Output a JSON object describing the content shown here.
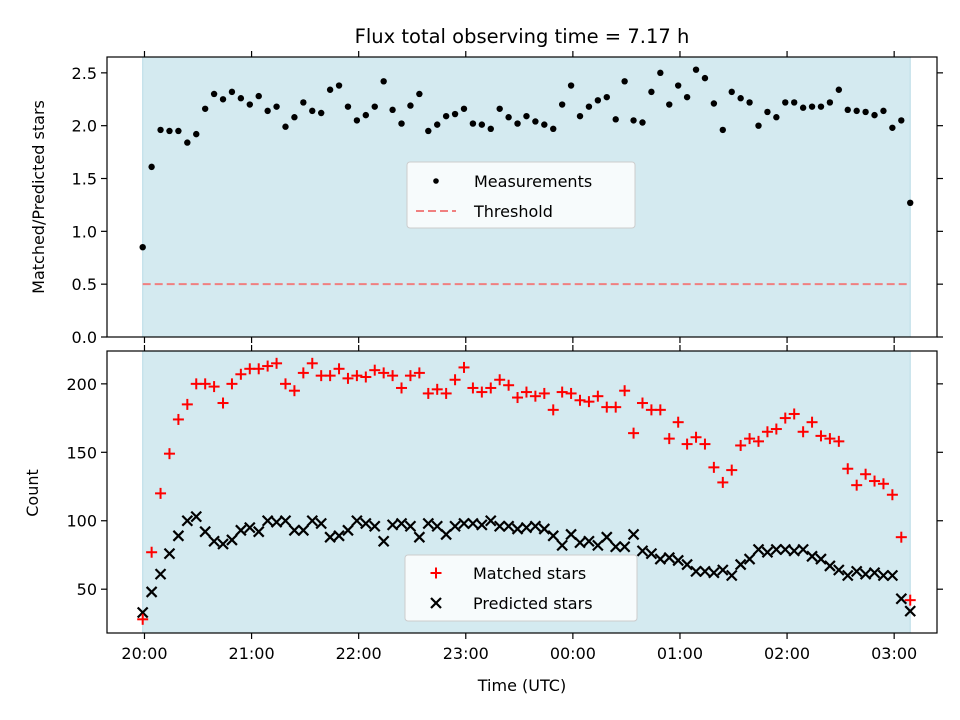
{
  "chart_data": [
    {
      "type": "scatter",
      "title": "Flux total observing time = 7.17 h",
      "ylabel": "Matched/Predicted stars",
      "xlabel": "",
      "xlim": [
        "19:39",
        "03:24"
      ],
      "ylim": [
        0,
        2.65
      ],
      "x_ticks": [
        "20:00",
        "21:00",
        "22:00",
        "23:00",
        "00:00",
        "01:00",
        "02:00",
        "03:00"
      ],
      "y_ticks": [
        "0.0",
        "0.5",
        "1.0",
        "1.5",
        "2.0",
        "2.5"
      ],
      "y_tick_values": [
        0,
        0.5,
        1.0,
        1.5,
        2.0,
        2.5
      ],
      "observing_window": [
        "19:59",
        "03:09"
      ],
      "observing_window_color": "#d4eaf0",
      "legend_position": "center",
      "grid": false,
      "series": [
        {
          "name": "Measurements",
          "marker": "dot",
          "color": "#000000",
          "x": [
            "19:59",
            "20:04",
            "20:09",
            "20:14",
            "20:19",
            "20:24",
            "20:29",
            "20:34",
            "20:39",
            "20:44",
            "20:49",
            "20:54",
            "20:59",
            "21:04",
            "21:09",
            "21:14",
            "21:19",
            "21:24",
            "21:29",
            "21:34",
            "21:39",
            "21:44",
            "21:49",
            "21:54",
            "21:59",
            "22:04",
            "22:09",
            "22:14",
            "22:19",
            "22:24",
            "22:29",
            "22:34",
            "22:39",
            "22:44",
            "22:49",
            "22:54",
            "22:59",
            "23:04",
            "23:09",
            "23:14",
            "23:19",
            "23:24",
            "23:29",
            "23:34",
            "23:39",
            "23:44",
            "23:49",
            "23:54",
            "23:59",
            "00:04",
            "00:09",
            "00:14",
            "00:19",
            "00:24",
            "00:29",
            "00:34",
            "00:39",
            "00:44",
            "00:49",
            "00:54",
            "00:59",
            "01:04",
            "01:09",
            "01:14",
            "01:19",
            "01:24",
            "01:29",
            "01:34",
            "01:39",
            "01:44",
            "01:49",
            "01:54",
            "01:59",
            "02:04",
            "02:09",
            "02:14",
            "02:19",
            "02:24",
            "02:29",
            "02:34",
            "02:39",
            "02:44",
            "02:49",
            "02:54",
            "02:59",
            "03:04",
            "03:09"
          ],
          "y": [
            0.85,
            1.61,
            1.96,
            1.95,
            1.95,
            1.84,
            1.92,
            2.16,
            2.3,
            2.25,
            2.32,
            2.26,
            2.2,
            2.28,
            2.14,
            2.18,
            1.99,
            2.08,
            2.22,
            2.14,
            2.12,
            2.34,
            2.38,
            2.18,
            2.05,
            2.1,
            2.18,
            2.42,
            2.15,
            2.02,
            2.19,
            2.3,
            1.95,
            2.01,
            2.09,
            2.11,
            2.16,
            2.02,
            2.01,
            1.97,
            2.16,
            2.08,
            2.02,
            2.09,
            2.04,
            2.01,
            1.97,
            2.2,
            2.38,
            2.09,
            2.18,
            2.24,
            2.27,
            2.06,
            2.42,
            2.05,
            2.03,
            2.32,
            2.5,
            2.2,
            2.38,
            2.27,
            2.53,
            2.45,
            2.21,
            1.96,
            2.32,
            2.26,
            2.22,
            2.0,
            2.13,
            2.08,
            2.22,
            2.22,
            2.17,
            2.18,
            2.18,
            2.22,
            2.34,
            2.15,
            2.14,
            2.13,
            2.1,
            2.14,
            1.98,
            2.05,
            1.27
          ]
        },
        {
          "name": "Threshold",
          "marker": "dashed-line",
          "color": "#f08080",
          "y": 0.5
        }
      ]
    },
    {
      "type": "scatter",
      "title": "",
      "ylabel": "Count",
      "xlabel": "Time (UTC)",
      "xlim": [
        "19:39",
        "03:24"
      ],
      "ylim": [
        18,
        224
      ],
      "x_ticks": [
        "20:00",
        "21:00",
        "22:00",
        "23:00",
        "00:00",
        "01:00",
        "02:00",
        "03:00"
      ],
      "y_ticks": [
        "50",
        "100",
        "150",
        "200"
      ],
      "y_tick_values": [
        50,
        100,
        150,
        200
      ],
      "observing_window": [
        "19:59",
        "03:09"
      ],
      "observing_window_color": "#d4eaf0",
      "legend_position": "lower center",
      "grid": false,
      "series": [
        {
          "name": "Matched stars",
          "marker": "plus",
          "color": "#ff0000",
          "x": [
            "19:59",
            "20:04",
            "20:09",
            "20:14",
            "20:19",
            "20:24",
            "20:29",
            "20:34",
            "20:39",
            "20:44",
            "20:49",
            "20:54",
            "20:59",
            "21:04",
            "21:09",
            "21:14",
            "21:19",
            "21:24",
            "21:29",
            "21:34",
            "21:39",
            "21:44",
            "21:49",
            "21:54",
            "21:59",
            "22:04",
            "22:09",
            "22:14",
            "22:19",
            "22:24",
            "22:29",
            "22:34",
            "22:39",
            "22:44",
            "22:49",
            "22:54",
            "22:59",
            "23:04",
            "23:09",
            "23:14",
            "23:19",
            "23:24",
            "23:29",
            "23:34",
            "23:39",
            "23:44",
            "23:49",
            "23:54",
            "23:59",
            "00:04",
            "00:09",
            "00:14",
            "00:19",
            "00:24",
            "00:29",
            "00:34",
            "00:39",
            "00:44",
            "00:49",
            "00:54",
            "00:59",
            "01:04",
            "01:09",
            "01:14",
            "01:19",
            "01:24",
            "01:29",
            "01:34",
            "01:39",
            "01:44",
            "01:49",
            "01:54",
            "01:59",
            "02:04",
            "02:09",
            "02:14",
            "02:19",
            "02:24",
            "02:29",
            "02:34",
            "02:39",
            "02:44",
            "02:49",
            "02:54",
            "02:59",
            "03:04",
            "03:09"
          ],
          "y": [
            28,
            77,
            120,
            149,
            174,
            185,
            200,
            200,
            198,
            186,
            200,
            207,
            211,
            211,
            213,
            215,
            200,
            195,
            208,
            215,
            206,
            206,
            211,
            204,
            206,
            205,
            210,
            208,
            206,
            197,
            206,
            208,
            193,
            196,
            193,
            203,
            212,
            197,
            194,
            197,
            203,
            199,
            190,
            194,
            191,
            193,
            181,
            194,
            193,
            188,
            187,
            191,
            183,
            183,
            195,
            164,
            186,
            181,
            181,
            160,
            172,
            156,
            161,
            156,
            139,
            128,
            137,
            155,
            160,
            158,
            165,
            167,
            175,
            178,
            165,
            172,
            162,
            160,
            158,
            138,
            126,
            134,
            129,
            127,
            119,
            88,
            42
          ]
        },
        {
          "name": "Predicted stars",
          "marker": "x",
          "color": "#000000",
          "x": [
            "19:59",
            "20:04",
            "20:09",
            "20:14",
            "20:19",
            "20:24",
            "20:29",
            "20:34",
            "20:39",
            "20:44",
            "20:49",
            "20:54",
            "20:59",
            "21:04",
            "21:09",
            "21:14",
            "21:19",
            "21:24",
            "21:29",
            "21:34",
            "21:39",
            "21:44",
            "21:49",
            "21:54",
            "21:59",
            "22:04",
            "22:09",
            "22:14",
            "22:19",
            "22:24",
            "22:29",
            "22:34",
            "22:39",
            "22:44",
            "22:49",
            "22:54",
            "22:59",
            "23:04",
            "23:09",
            "23:14",
            "23:19",
            "23:24",
            "23:29",
            "23:34",
            "23:39",
            "23:44",
            "23:49",
            "23:54",
            "23:59",
            "00:04",
            "00:09",
            "00:14",
            "00:19",
            "00:24",
            "00:29",
            "00:34",
            "00:39",
            "00:44",
            "00:49",
            "00:54",
            "00:59",
            "01:04",
            "01:09",
            "01:14",
            "01:19",
            "01:24",
            "01:29",
            "01:34",
            "01:39",
            "01:44",
            "01:49",
            "01:54",
            "01:59",
            "02:04",
            "02:09",
            "02:14",
            "02:19",
            "02:24",
            "02:29",
            "02:34",
            "02:39",
            "02:44",
            "02:49",
            "02:54",
            "02:59",
            "03:04",
            "03:09"
          ],
          "y": [
            33,
            48,
            61,
            76,
            89,
            100,
            103,
            92,
            85,
            83,
            86,
            93,
            95,
            92,
            100,
            99,
            100,
            93,
            93,
            100,
            98,
            88,
            89,
            93,
            100,
            98,
            96,
            85,
            97,
            98,
            96,
            88,
            98,
            96,
            90,
            96,
            98,
            98,
            97,
            100,
            96,
            96,
            94,
            95,
            96,
            94,
            89,
            82,
            90,
            84,
            85,
            82,
            88,
            81,
            81,
            90,
            78,
            76,
            72,
            73,
            71,
            68,
            63,
            63,
            62,
            64,
            60,
            68,
            72,
            79,
            77,
            79,
            79,
            78,
            79,
            74,
            72,
            67,
            64,
            60,
            63,
            61,
            62,
            60,
            60,
            43,
            34
          ]
        }
      ]
    }
  ]
}
